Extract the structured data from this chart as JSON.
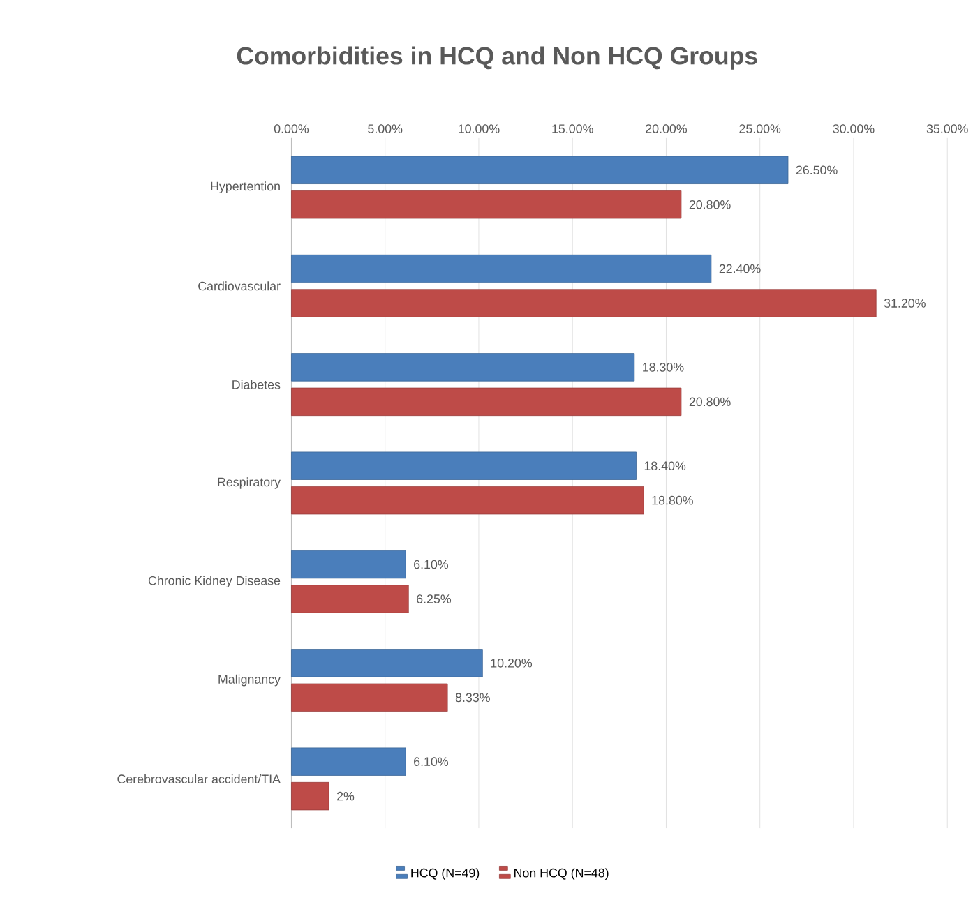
{
  "chart_data": {
    "type": "bar",
    "orientation": "horizontal",
    "title": "Comorbidities in HCQ and Non HCQ Groups",
    "categories": [
      "Hypertention",
      "Cardiovascular",
      "Diabetes",
      "Respiratory",
      "Chronic Kidney Disease",
      "Malignancy",
      "Cerebrovascular accident/TIA"
    ],
    "series": [
      {
        "name": "HCQ (N=49)",
        "color": "#4a7ebb",
        "values": [
          26.5,
          22.4,
          18.3,
          18.4,
          6.1,
          10.2,
          6.1
        ],
        "value_labels": [
          "26.50%",
          "22.40%",
          "18.30%",
          "18.40%",
          "6.10%",
          "10.20%",
          "6.10%"
        ]
      },
      {
        "name": "Non HCQ (N=48)",
        "color": "#be4b48",
        "values": [
          20.8,
          31.2,
          20.8,
          18.8,
          6.25,
          8.33,
          2
        ],
        "value_labels": [
          "20.80%",
          "31.20%",
          "20.80%",
          "18.80%",
          "6.25%",
          "8.33%",
          "2%"
        ]
      }
    ],
    "xlim": [
      0,
      35
    ],
    "xticks": [
      {
        "value": 0,
        "label": "0.00%"
      },
      {
        "value": 5,
        "label": "5.00%"
      },
      {
        "value": 10,
        "label": "10.00%"
      },
      {
        "value": 15,
        "label": "15.00%"
      },
      {
        "value": 20,
        "label": "20.00%"
      },
      {
        "value": 25,
        "label": "25.00%"
      },
      {
        "value": 30,
        "label": "30.00%"
      },
      {
        "value": 35,
        "label": "35.00%"
      }
    ],
    "grid": "x",
    "legend": "bottom"
  }
}
